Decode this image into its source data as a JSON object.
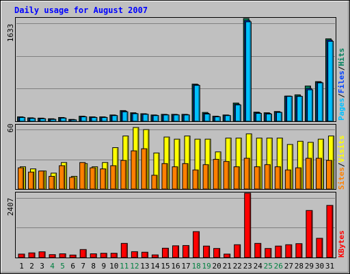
{
  "title": "Daily usage for August 2007",
  "colors": {
    "frame_bg": "#c0c0c0",
    "plot_bg": "#c0c0c0",
    "grid": "#808080",
    "title": "#0000ff",
    "weekday_label": "#000000",
    "weekend_label": "#008040",
    "hits": "#00805c",
    "files": "#0040ff",
    "pages": "#00c0ff",
    "visits": "#ffff00",
    "sites": "#ff8000",
    "kbytes": "#ff0000"
  },
  "chart_data": [
    {
      "type": "bar",
      "name": "pages-files-hits",
      "ylabel_max": "1633",
      "ylim": [
        0,
        1633
      ],
      "grid": true,
      "legend": {
        "pages": "Pages",
        "sep1": "/",
        "files": "Files",
        "sep2": "/",
        "hits": "Hits"
      },
      "categories": [
        "1",
        "2",
        "3",
        "4",
        "5",
        "6",
        "7",
        "8",
        "9",
        "10",
        "11",
        "12",
        "13",
        "14",
        "15",
        "16",
        "17",
        "18",
        "19",
        "20",
        "21",
        "22",
        "23",
        "24",
        "25",
        "26",
        "27",
        "28",
        "29",
        "30",
        "31"
      ],
      "weekend": [
        "4",
        "5",
        "11",
        "12",
        "18",
        "19",
        "25",
        "26"
      ],
      "series": [
        {
          "name": "Hits",
          "values": [
            70,
            55,
            50,
            40,
            60,
            30,
            80,
            70,
            70,
            100,
            170,
            135,
            120,
            100,
            110,
            110,
            110,
            590,
            140,
            80,
            100,
            290,
            1633,
            145,
            135,
            155,
            400,
            420,
            560,
            630,
            1310
          ]
        },
        {
          "name": "Files",
          "values": [
            65,
            50,
            45,
            35,
            55,
            25,
            75,
            65,
            65,
            95,
            160,
            125,
            115,
            95,
            105,
            105,
            105,
            580,
            125,
            75,
            95,
            270,
            1600,
            135,
            125,
            145,
            400,
            400,
            520,
            620,
            1290
          ]
        },
        {
          "name": "Pages",
          "values": [
            60,
            45,
            40,
            30,
            50,
            22,
            70,
            60,
            60,
            90,
            150,
            120,
            110,
            90,
            100,
            100,
            100,
            570,
            115,
            70,
            90,
            260,
            1580,
            125,
            115,
            140,
            395,
            395,
            500,
            610,
            1270
          ]
        }
      ]
    },
    {
      "type": "bar",
      "name": "visits-sites",
      "ylabel_max": "60",
      "ylim": [
        0,
        60
      ],
      "grid": true,
      "legend": {
        "sites": "Sites",
        "sep": "/",
        "visits": "Visits"
      },
      "categories": [
        "1",
        "2",
        "3",
        "4",
        "5",
        "6",
        "7",
        "8",
        "9",
        "10",
        "11",
        "12",
        "13",
        "14",
        "15",
        "16",
        "17",
        "18",
        "19",
        "20",
        "21",
        "22",
        "23",
        "24",
        "25",
        "26",
        "27",
        "28",
        "29",
        "30",
        "31"
      ],
      "series": [
        {
          "name": "Visits",
          "values": [
            21,
            19,
            17,
            15,
            25,
            12,
            24,
            21,
            25,
            39,
            50,
            58,
            56,
            34,
            49,
            47,
            50,
            47,
            47,
            35,
            48,
            48,
            52,
            48,
            48,
            48,
            42,
            45,
            44,
            47,
            50
          ]
        },
        {
          "name": "Sites",
          "values": [
            20,
            16,
            17,
            12,
            22,
            11,
            25,
            20,
            19,
            22,
            27,
            36,
            38,
            13,
            24,
            21,
            24,
            18,
            23,
            28,
            26,
            21,
            29,
            21,
            23,
            21,
            18,
            20,
            29,
            29,
            27
          ]
        }
      ]
    },
    {
      "type": "bar",
      "name": "kbytes",
      "ylabel_max": "2407",
      "ylim": [
        0,
        2407
      ],
      "grid": true,
      "legend": {
        "kbytes": "KBytes"
      },
      "categories": [
        "1",
        "2",
        "3",
        "4",
        "5",
        "6",
        "7",
        "8",
        "9",
        "10",
        "11",
        "12",
        "13",
        "14",
        "15",
        "16",
        "17",
        "18",
        "19",
        "20",
        "21",
        "22",
        "23",
        "24",
        "25",
        "26",
        "27",
        "28",
        "29",
        "30",
        "31"
      ],
      "series": [
        {
          "name": "KBytes",
          "values": [
            130,
            175,
            215,
            110,
            140,
            95,
            300,
            140,
            160,
            160,
            530,
            220,
            200,
            100,
            350,
            440,
            450,
            970,
            430,
            340,
            130,
            480,
            2407,
            530,
            340,
            430,
            480,
            520,
            1760,
            720,
            1950
          ]
        }
      ]
    }
  ]
}
